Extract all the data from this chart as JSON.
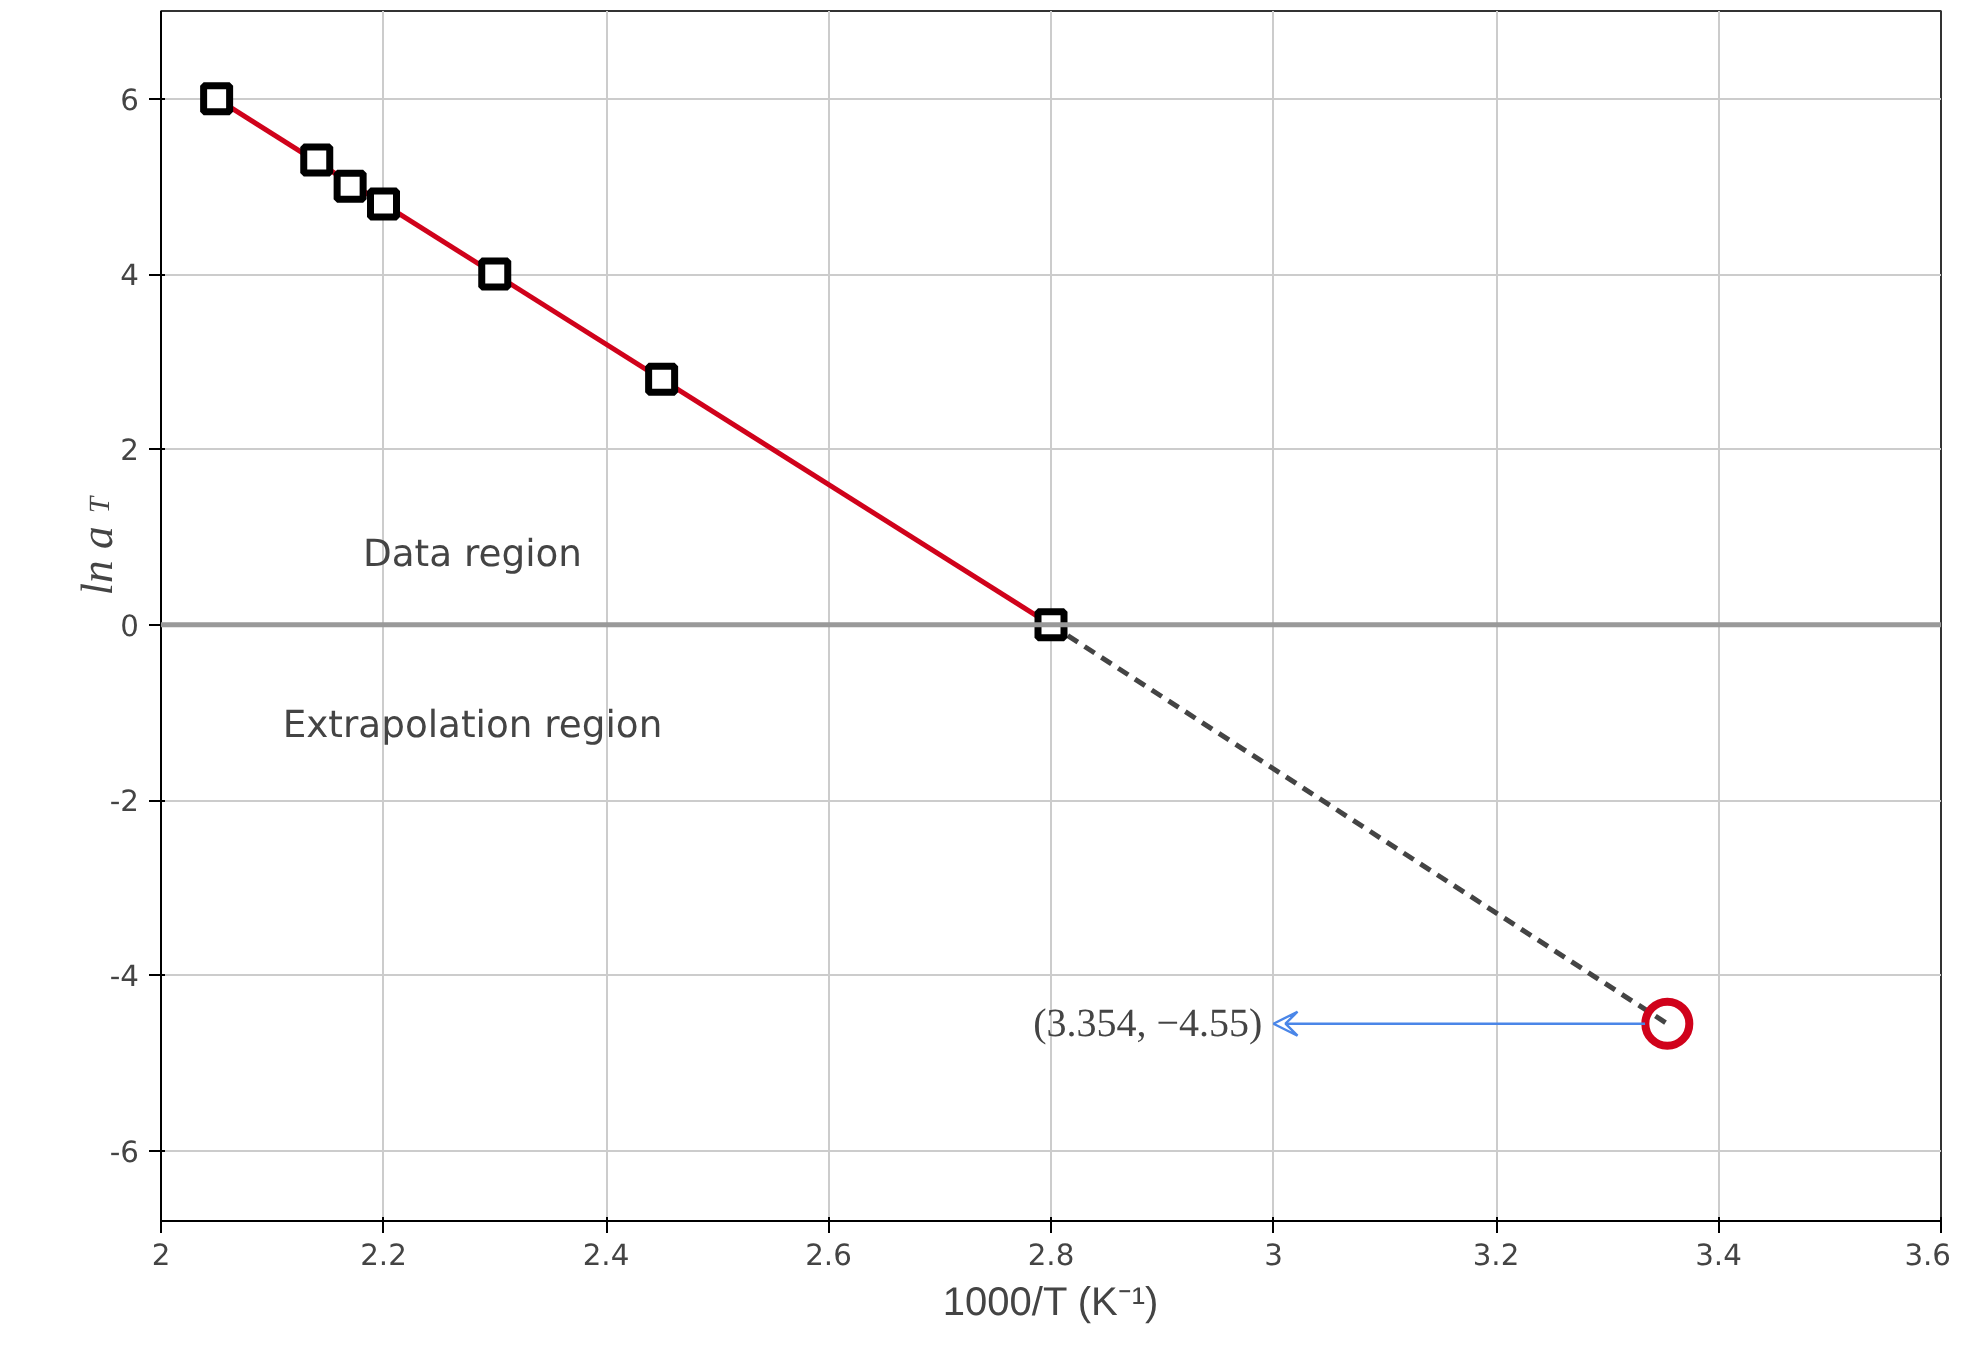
{
  "chart_data": {
    "type": "scatter",
    "xlabel": "1000/T (K⁻¹)",
    "ylabel": "ln a$_{T}$",
    "xlim": [
      2,
      3.6
    ],
    "xticks": [
      2,
      2.2,
      2.4,
      2.6,
      2.8,
      3,
      3.2,
      3.4,
      3.6
    ],
    "ylim": [
      -6.8,
      7
    ],
    "yticks": [
      -6,
      -4,
      -2,
      0,
      2,
      4,
      6
    ],
    "grid": true,
    "series": [
      {
        "type": "line",
        "color": "#d0021b",
        "x": [
          2.05,
          2.8
        ],
        "values": [
          6,
          0
        ],
        "line_style": "solid"
      },
      {
        "type": "line",
        "color": "#444444",
        "x": [
          2.8,
          3.354
        ],
        "values": [
          0,
          -4.55
        ],
        "line_style": "dashed"
      },
      {
        "color": "#000000",
        "x": [
          2.05,
          2.14,
          2.17,
          2.2,
          2.3,
          2.45,
          2.8
        ],
        "values": [
          6,
          5.3,
          5.0,
          4.8,
          4.0,
          2.8,
          0
        ],
        "marker": "square"
      },
      {
        "color": "#d0021b",
        "x": [
          3.354
        ],
        "values": [
          -4.55
        ],
        "marker": "circle"
      }
    ],
    "ref_lines": [
      {
        "axis": "y",
        "value": 0,
        "color": "#999999"
      }
    ],
    "annotations": [
      "(3.354, −4.55)",
      "Data region",
      "Extrapolation region"
    ]
  }
}
